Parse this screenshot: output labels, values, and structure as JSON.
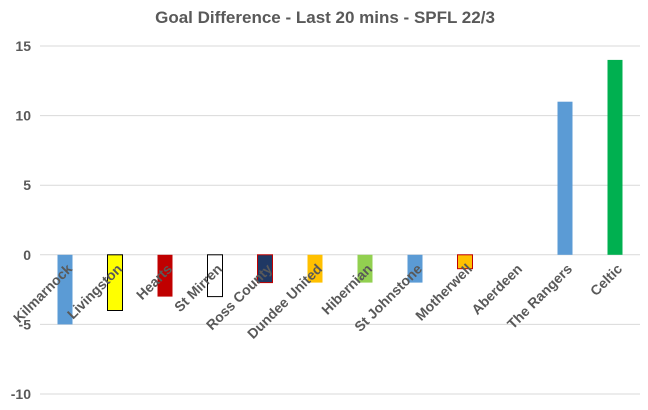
{
  "chart_data": {
    "type": "bar",
    "title": "Goal Difference - Last 20 mins - SPFL 22/3",
    "xlabel": "",
    "ylabel": "",
    "ylim": [
      -10,
      15
    ],
    "yticks": [
      -10,
      -5,
      0,
      5,
      10,
      15
    ],
    "grid": true,
    "categories": [
      "Kilmarnock",
      "Livingston",
      "Hearts",
      "St Mirren",
      "Ross County",
      "Dundee United",
      "Hibernian",
      "St Johnstone",
      "Motherwell",
      "Aberdeen",
      "The Rangers",
      "Celtic"
    ],
    "values": [
      -5,
      -4,
      -3,
      -3,
      -2,
      -2,
      -2,
      -2,
      -1,
      0,
      11,
      14
    ],
    "colors": [
      "#5b9bd5",
      "#ffff00",
      "#c00000",
      "#ffffff",
      "#1f3864",
      "#ffc000",
      "#92d050",
      "#5b9bd5",
      "#ffc000",
      "#ffffff",
      "#5b9bd5",
      "#00b050"
    ],
    "outlines": [
      "none",
      "#000000",
      "none",
      "#000000",
      "#c00000",
      "none",
      "none",
      "none",
      "#c00000",
      "none",
      "none",
      "none"
    ]
  }
}
